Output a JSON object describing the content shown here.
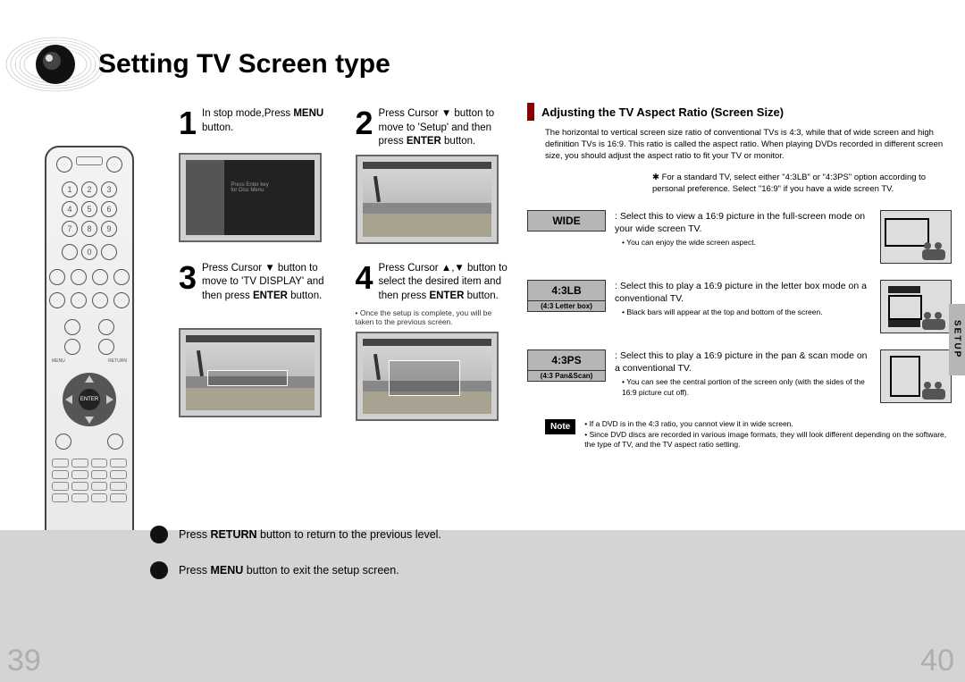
{
  "title": "Setting TV Screen type",
  "page_left": "39",
  "page_right": "40",
  "side_tab": "SETUP",
  "steps": [
    {
      "num": "1",
      "html": "In stop mode,Press <b>MENU</b> button."
    },
    {
      "num": "2",
      "html": "Press Cursor ▼ button to move to 'Setup' and then press <b>ENTER</b> button."
    },
    {
      "num": "3",
      "html": "Press Cursor ▼ button to move to 'TV DISPLAY' and then press <b>ENTER</b> button."
    },
    {
      "num": "4",
      "html": "Press Cursor ▲,▼ button to select the desired item and then press <b>ENTER</b> button."
    }
  ],
  "step_footnote": "• Once the setup is complete, you will be taken to the previous screen.",
  "right": {
    "heading": "Adjusting the TV Aspect Ratio (Screen Size)",
    "intro": "The horizontal to vertical screen size ratio of conventional TVs is 4:3, while that of wide screen and high definition TVs is 16:9. This ratio is called the aspect ratio. When playing DVDs recorded in different screen size, you should adjust the aspect ratio to fit your TV or monitor.",
    "star_note": "✱ For a standard TV, select either \"4:3LB\" or \"4:3PS\" option according to personal preference. Select \"16:9\" if you have a wide screen TV.",
    "options": [
      {
        "label": "WIDE",
        "sublabel": "",
        "desc": ": Select this to view a 16:9 picture in the full-screen mode on your wide screen TV.",
        "bullet": "• You can enjoy the wide screen aspect."
      },
      {
        "label": "4:3LB",
        "sublabel": "(4:3 Letter box)",
        "desc": ": Select this to play a 16:9 picture in the letter box mode on a conventional TV.",
        "bullet": "• Black bars will appear at the top and bottom of the screen."
      },
      {
        "label": "4:3PS",
        "sublabel": "(4:3 Pan&Scan)",
        "desc": ": Select this to play a 16:9 picture in the pan & scan mode on a conventional TV.",
        "bullet": "• You can see the central portion of the screen only (with the sides of the 16:9 picture cut off)."
      }
    ],
    "note_label": "Note",
    "note_html": "• If a DVD is in the 4:3 ratio, you cannot view it in wide screen.<br>• Since DVD discs are recorded in various image formats, they will look different depending on the software, the type of TV, and the TV aspect ratio setting."
  },
  "footer": {
    "line1_html": "Press <b>RETURN</b> button to return to the previous level.",
    "line2_html": "Press <b>MENU</b> button to exit the setup screen."
  },
  "remote": {
    "enter": "ENTER",
    "nums": [
      "1",
      "2",
      "3",
      "4",
      "5",
      "6",
      "7",
      "8",
      "9"
    ],
    "zero": "0",
    "menu": "MENU",
    "return": "RETURN"
  },
  "colors": {
    "accent_red": "#8a0000",
    "gray_badge": "#b6b6b6",
    "footer_bg": "#d4d4d4",
    "pagenum": "#aeaeae"
  }
}
